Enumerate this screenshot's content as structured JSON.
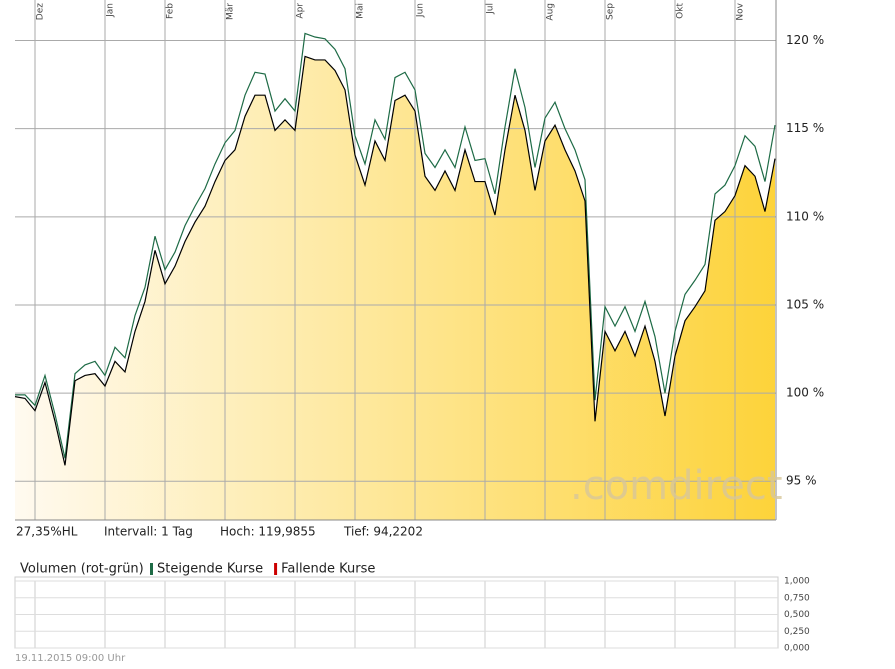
{
  "chart_data": [
    {
      "type": "line",
      "categories": [
        null,
        null,
        "Dez",
        null,
        null,
        null,
        null,
        null,
        null,
        "Jan",
        null,
        null,
        null,
        null,
        null,
        "Feb",
        null,
        null,
        null,
        null,
        null,
        "Mär",
        null,
        null,
        null,
        null,
        null,
        null,
        "Apr",
        null,
        null,
        null,
        null,
        null,
        "Mai",
        null,
        null,
        null,
        null,
        null,
        "Jun",
        null,
        null,
        null,
        null,
        null,
        null,
        "Jul",
        null,
        null,
        null,
        null,
        null,
        "Aug",
        null,
        null,
        null,
        null,
        null,
        "Sep",
        null,
        null,
        null,
        null,
        null,
        null,
        "Okt",
        null,
        null,
        null,
        null,
        null,
        "Nov",
        null,
        null,
        null,
        null
      ],
      "series": [
        {
          "color": "#000000",
          "values": [
            99.8,
            99.7,
            99.0,
            100.6,
            98.4,
            95.9,
            100.7,
            101.0,
            101.1,
            100.4,
            101.8,
            101.2,
            103.5,
            105.2,
            108.1,
            106.2,
            107.2,
            108.6,
            109.7,
            110.6,
            112.0,
            113.2,
            113.8,
            115.7,
            116.9,
            116.9,
            114.9,
            115.5,
            114.9,
            119.1,
            118.9,
            118.9,
            118.3,
            117.2,
            113.5,
            111.8,
            114.3,
            113.2,
            116.6,
            116.9,
            116.0,
            112.3,
            111.5,
            112.6,
            111.5,
            113.8,
            112.0,
            112.0,
            110.1,
            113.8,
            116.9,
            114.9,
            111.5,
            114.3,
            115.2,
            113.8,
            112.6,
            110.9,
            98.4,
            103.5,
            102.4,
            103.5,
            102.1,
            103.8,
            101.8,
            98.7,
            102.1,
            104.1,
            104.9,
            105.8,
            109.8,
            110.3,
            111.2,
            112.9,
            112.3,
            110.3,
            113.3
          ]
        },
        {
          "color": "#1e6b46",
          "values": [
            99.9,
            99.9,
            99.3,
            101.0,
            98.8,
            96.3,
            101.1,
            101.6,
            101.8,
            101.0,
            102.6,
            102.0,
            104.4,
            106.0,
            108.9,
            107.0,
            108.0,
            109.5,
            110.6,
            111.6,
            113.0,
            114.2,
            114.9,
            116.9,
            118.2,
            118.1,
            116.0,
            116.7,
            116.0,
            120.4,
            120.2,
            120.1,
            119.5,
            118.4,
            114.6,
            113.0,
            115.5,
            114.4,
            117.9,
            118.2,
            117.2,
            113.6,
            112.8,
            113.8,
            112.8,
            115.1,
            113.2,
            113.3,
            111.3,
            115.1,
            118.4,
            116.2,
            112.8,
            115.6,
            116.5,
            115.0,
            113.8,
            112.1,
            99.6,
            104.9,
            103.8,
            104.9,
            103.5,
            105.2,
            103.2,
            100.0,
            103.5,
            105.6,
            106.4,
            107.3,
            111.3,
            111.8,
            112.9,
            114.6,
            114.0,
            112.0,
            115.2
          ]
        }
      ],
      "ylim": [
        92.8,
        122.3
      ],
      "yticks": [
        {
          "value": 95,
          "label": "95 %"
        },
        {
          "value": 100,
          "label": "100 %"
        },
        {
          "value": 105,
          "label": "105 %"
        },
        {
          "value": 110,
          "label": "110 %"
        },
        {
          "value": 115,
          "label": "115 %"
        },
        {
          "value": 120,
          "label": "120 %"
        }
      ],
      "grid": true,
      "stats": [
        "27,35%HL",
        "Intervall: 1 Tag",
        "Hoch: 119,9855",
        "Tief: 94,2202"
      ],
      "watermark": ".comdirect"
    },
    {
      "type": "bar",
      "title": "Volumen (rot-grün)",
      "series": [
        {
          "name": "Steigende Kurse",
          "color": "#1e6b46",
          "values": []
        },
        {
          "name": "Fallende Kurse",
          "color": "#cc0000",
          "values": []
        }
      ],
      "ylim": [
        0,
        1
      ],
      "yticks": [
        {
          "value": 0,
          "label": "0,000"
        },
        {
          "value": 0.25,
          "label": "0,250"
        },
        {
          "value": 0.5,
          "label": "0,500"
        },
        {
          "value": 0.75,
          "label": "0,750"
        },
        {
          "value": 1,
          "label": "1,000"
        }
      ],
      "grid": true
    }
  ],
  "footer": "19.11.2015 09:00 Uhr"
}
